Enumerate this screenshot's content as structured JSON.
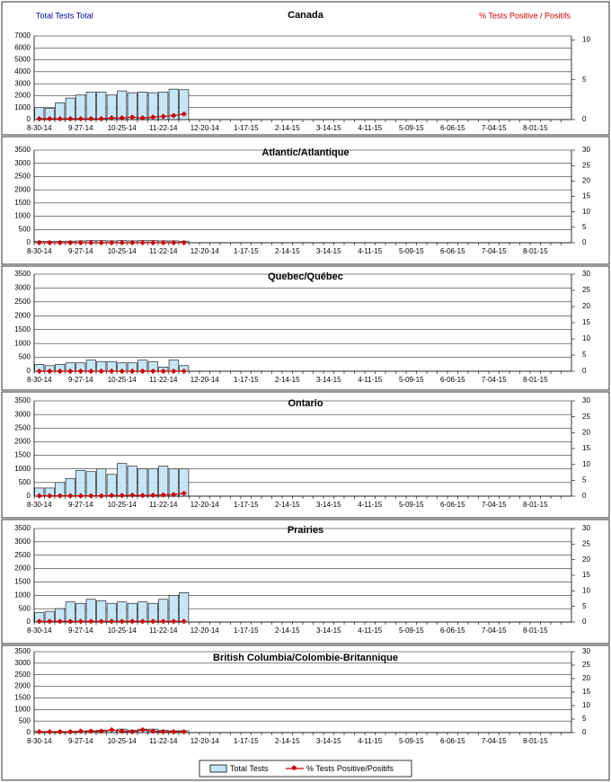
{
  "chart_data": [
    {
      "type": "bar-line",
      "title": "Canada",
      "y_label": "Total Tests Total",
      "y2_label": "% Tests Positive / Positifs",
      "categories": [
        "8-30-14",
        null,
        null,
        null,
        "9-27-14",
        null,
        null,
        null,
        "10-25-14",
        null,
        null,
        null,
        "11-22-14",
        null,
        null,
        null,
        "12-20-14",
        null,
        null,
        null,
        "1-17-15",
        null,
        null,
        null,
        "2-14-15",
        null,
        null,
        null,
        "3-14-15",
        null,
        null,
        null,
        "4-11-15",
        null,
        null,
        null,
        "5-09-15",
        null,
        null,
        null,
        "6-06-15",
        null,
        null,
        null,
        "7-04-15",
        null,
        null,
        null,
        "8-01-15",
        null,
        null,
        null
      ],
      "series": [
        {
          "name": "Total Tests",
          "color": "#c6e6f7",
          "values": [
            1000,
            950,
            1400,
            1800,
            2050,
            2300,
            2300,
            2050,
            2400,
            2250,
            2300,
            2250,
            2300,
            2550,
            2500,
            null,
            null,
            null,
            null,
            null,
            null,
            null,
            null,
            null,
            null,
            null,
            null,
            null,
            null,
            null,
            null,
            null,
            null,
            null,
            null,
            null,
            null,
            null,
            null,
            null,
            null,
            null,
            null,
            null,
            null,
            null,
            null,
            null,
            null,
            null,
            null,
            null
          ]
        },
        {
          "name": "% Tests Positive/Positifs",
          "color": "#cc0000",
          "axis": "y2",
          "values": [
            0.1,
            0.1,
            0.1,
            0.1,
            0.1,
            0.1,
            0.1,
            0.2,
            0.2,
            0.3,
            0.2,
            0.3,
            0.4,
            0.5,
            0.7,
            null,
            null,
            null,
            null,
            null,
            null,
            null,
            null,
            null,
            null,
            null,
            null,
            null,
            null,
            null,
            null,
            null,
            null,
            null,
            null,
            null,
            null,
            null,
            null,
            null,
            null,
            null,
            null,
            null,
            null,
            null,
            null,
            null,
            null,
            null,
            null,
            null
          ]
        }
      ],
      "ylim": [
        0,
        7000
      ],
      "yticks": [
        0,
        1000,
        2000,
        3000,
        4000,
        5000,
        6000,
        7000
      ],
      "y2lim": [
        0,
        10.5
      ],
      "y2ticks": [
        0,
        5,
        10
      ],
      "grid": true
    },
    {
      "type": "bar-line",
      "title": "Atlantic/Atlantique",
      "categories": [
        "8-30-14",
        null,
        null,
        null,
        "9-27-14",
        null,
        null,
        null,
        "10-25-14",
        null,
        null,
        null,
        "11-22-14",
        null,
        null,
        null,
        "12-20-14",
        null,
        null,
        null,
        "1-17-15",
        null,
        null,
        null,
        "2-14-15",
        null,
        null,
        null,
        "3-14-15",
        null,
        null,
        null,
        "4-11-15",
        null,
        null,
        null,
        "5-09-15",
        null,
        null,
        null,
        "6-06-15",
        null,
        null,
        null,
        "7-04-15",
        null,
        null,
        null,
        "8-01-15",
        null,
        null,
        null
      ],
      "series": [
        {
          "color": "#c6e6f7",
          "values": [
            60,
            50,
            50,
            60,
            70,
            80,
            80,
            70,
            80,
            70,
            80,
            80,
            70,
            70,
            60,
            null,
            null,
            null,
            null,
            null,
            null,
            null,
            null,
            null,
            null,
            null,
            null,
            null,
            null,
            null,
            null,
            null,
            null,
            null,
            null,
            null,
            null,
            null,
            null,
            null,
            null,
            null,
            null,
            null,
            null,
            null,
            null,
            null,
            null,
            null,
            null,
            null
          ]
        },
        {
          "color": "#cc0000",
          "axis": "y2",
          "values": [
            0,
            0,
            0,
            0,
            0,
            0,
            0,
            0,
            0,
            0,
            0,
            0,
            0,
            0,
            0,
            null,
            null,
            null,
            null,
            null,
            null,
            null,
            null,
            null,
            null,
            null,
            null,
            null,
            null,
            null,
            null,
            null,
            null,
            null,
            null,
            null,
            null,
            null,
            null,
            null,
            null,
            null,
            null,
            null,
            null,
            null,
            null,
            null,
            null,
            null,
            null,
            null
          ]
        }
      ],
      "ylim": [
        0,
        3500
      ],
      "yticks": [
        0,
        500,
        1000,
        1500,
        2000,
        2500,
        3000,
        3500
      ],
      "y2lim": [
        0,
        30
      ],
      "y2ticks": [
        0,
        5,
        10,
        15,
        20,
        25,
        30
      ],
      "grid": true
    },
    {
      "type": "bar-line",
      "title": "Quebec/Québec",
      "categories": [
        "8-30-14",
        null,
        null,
        null,
        "9-27-14",
        null,
        null,
        null,
        "10-25-14",
        null,
        null,
        null,
        "11-22-14",
        null,
        null,
        null,
        "12-20-14",
        null,
        null,
        null,
        "1-17-15",
        null,
        null,
        null,
        "2-14-15",
        null,
        null,
        null,
        "3-14-15",
        null,
        null,
        null,
        "4-11-15",
        null,
        null,
        null,
        "5-09-15",
        null,
        null,
        null,
        "6-06-15",
        null,
        null,
        null,
        "7-04-15",
        null,
        null,
        null,
        "8-01-15",
        null,
        null,
        null
      ],
      "series": [
        {
          "color": "#c6e6f7",
          "values": [
            250,
            200,
            250,
            300,
            300,
            400,
            350,
            350,
            300,
            300,
            400,
            350,
            150,
            400,
            200,
            null,
            null,
            null,
            null,
            null,
            null,
            null,
            null,
            null,
            null,
            null,
            null,
            null,
            null,
            null,
            null,
            null,
            null,
            null,
            null,
            null,
            null,
            null,
            null,
            null,
            null,
            null,
            null,
            null,
            null,
            null,
            null,
            null,
            null,
            null,
            null,
            null
          ]
        },
        {
          "color": "#cc0000",
          "axis": "y2",
          "values": [
            0,
            0,
            0,
            0,
            0,
            0,
            0,
            0,
            0,
            0,
            0,
            0,
            0,
            0,
            0,
            null,
            null,
            null,
            null,
            null,
            null,
            null,
            null,
            null,
            null,
            null,
            null,
            null,
            null,
            null,
            null,
            null,
            null,
            null,
            null,
            null,
            null,
            null,
            null,
            null,
            null,
            null,
            null,
            null,
            null,
            null,
            null,
            null,
            null,
            null,
            null,
            null
          ]
        }
      ],
      "ylim": [
        0,
        3500
      ],
      "yticks": [
        0,
        500,
        1000,
        1500,
        2000,
        2500,
        3000,
        3500
      ],
      "y2lim": [
        0,
        30
      ],
      "y2ticks": [
        0,
        5,
        10,
        15,
        20,
        25,
        30
      ],
      "grid": true
    },
    {
      "type": "bar-line",
      "title": "Ontario",
      "categories": [
        "8-30-14",
        null,
        null,
        null,
        "9-27-14",
        null,
        null,
        null,
        "10-25-14",
        null,
        null,
        null,
        "11-22-14",
        null,
        null,
        null,
        "12-20-14",
        null,
        null,
        null,
        "1-17-15",
        null,
        null,
        null,
        "2-14-15",
        null,
        null,
        null,
        "3-14-15",
        null,
        null,
        null,
        "4-11-15",
        null,
        null,
        null,
        "5-09-15",
        null,
        null,
        null,
        "6-06-15",
        null,
        null,
        null,
        "7-04-15",
        null,
        null,
        null,
        "8-01-15",
        null,
        null,
        null
      ],
      "series": [
        {
          "color": "#c6e6f7",
          "values": [
            300,
            300,
            500,
            650,
            950,
            900,
            1000,
            800,
            1200,
            1100,
            1000,
            1000,
            1100,
            1000,
            1000,
            null,
            null,
            null,
            null,
            null,
            null,
            null,
            null,
            null,
            null,
            null,
            null,
            null,
            null,
            null,
            null,
            null,
            null,
            null,
            null,
            null,
            null,
            null,
            null,
            null,
            null,
            null,
            null,
            null,
            null,
            null,
            null,
            null,
            null,
            null,
            null,
            null
          ]
        },
        {
          "color": "#cc0000",
          "axis": "y2",
          "values": [
            0.1,
            0.1,
            0.1,
            0.1,
            0.1,
            0.1,
            0.1,
            0.2,
            0.2,
            0.3,
            0.2,
            0.3,
            0.4,
            0.5,
            0.9,
            null,
            null,
            null,
            null,
            null,
            null,
            null,
            null,
            null,
            null,
            null,
            null,
            null,
            null,
            null,
            null,
            null,
            null,
            null,
            null,
            null,
            null,
            null,
            null,
            null,
            null,
            null,
            null,
            null,
            null,
            null,
            null,
            null,
            null,
            null,
            null,
            null
          ]
        }
      ],
      "ylim": [
        0,
        3500
      ],
      "yticks": [
        0,
        500,
        1000,
        1500,
        2000,
        2500,
        3000,
        3500
      ],
      "y2lim": [
        0,
        30
      ],
      "y2ticks": [
        0,
        5,
        10,
        15,
        20,
        25,
        30
      ],
      "grid": true
    },
    {
      "type": "bar-line",
      "title": "Prairies",
      "categories": [
        "8-30-14",
        null,
        null,
        null,
        "9-27-14",
        null,
        null,
        null,
        "10-25-14",
        null,
        null,
        null,
        "11-22-14",
        null,
        null,
        null,
        "12-20-14",
        null,
        null,
        null,
        "1-17-15",
        null,
        null,
        null,
        "2-14-15",
        null,
        null,
        null,
        "3-14-15",
        null,
        null,
        null,
        "4-11-15",
        null,
        null,
        null,
        "5-09-15",
        null,
        null,
        null,
        "6-06-15",
        null,
        null,
        null,
        "7-04-15",
        null,
        null,
        null,
        "8-01-15",
        null,
        null,
        null
      ],
      "series": [
        {
          "color": "#c6e6f7",
          "values": [
            350,
            400,
            500,
            750,
            700,
            850,
            800,
            700,
            750,
            700,
            750,
            700,
            850,
            1000,
            1100,
            null,
            null,
            null,
            null,
            null,
            null,
            null,
            null,
            null,
            null,
            null,
            null,
            null,
            null,
            null,
            null,
            null,
            null,
            null,
            null,
            null,
            null,
            null,
            null,
            null,
            null,
            null,
            null,
            null,
            null,
            null,
            null,
            null,
            null,
            null,
            null,
            null
          ]
        },
        {
          "color": "#cc0000",
          "axis": "y2",
          "values": [
            0.2,
            0.2,
            0.2,
            0.2,
            0.2,
            0.2,
            0.2,
            0.2,
            0.2,
            0.2,
            0.2,
            0.2,
            0.2,
            0.2,
            0.2,
            null,
            null,
            null,
            null,
            null,
            null,
            null,
            null,
            null,
            null,
            null,
            null,
            null,
            null,
            null,
            null,
            null,
            null,
            null,
            null,
            null,
            null,
            null,
            null,
            null,
            null,
            null,
            null,
            null,
            null,
            null,
            null,
            null,
            null,
            null,
            null,
            null
          ]
        }
      ],
      "ylim": [
        0,
        3500
      ],
      "yticks": [
        0,
        500,
        1000,
        1500,
        2000,
        2500,
        3000,
        3500
      ],
      "y2lim": [
        0,
        30
      ],
      "y2ticks": [
        0,
        5,
        10,
        15,
        20,
        25,
        30
      ],
      "grid": true
    },
    {
      "type": "bar-line",
      "title": "British Columbia/Colombie-Britannique",
      "categories": [
        "8-30-14",
        null,
        null,
        null,
        "9-27-14",
        null,
        null,
        null,
        "10-25-14",
        null,
        null,
        null,
        "11-22-14",
        null,
        null,
        null,
        "12-20-14",
        null,
        null,
        null,
        "1-17-15",
        null,
        null,
        null,
        "2-14-15",
        null,
        null,
        null,
        "3-14-15",
        null,
        null,
        null,
        "4-11-15",
        null,
        null,
        null,
        "5-09-15",
        null,
        null,
        null,
        "6-06-15",
        null,
        null,
        null,
        "7-04-15",
        null,
        null,
        null,
        "8-01-15",
        null,
        null,
        null
      ],
      "series": [
        {
          "color": "#c6e6f7",
          "values": [
            50,
            50,
            50,
            50,
            60,
            80,
            100,
            100,
            150,
            100,
            150,
            150,
            100,
            80,
            80,
            null,
            null,
            null,
            null,
            null,
            null,
            null,
            null,
            null,
            null,
            null,
            null,
            null,
            null,
            null,
            null,
            null,
            null,
            null,
            null,
            null,
            null,
            null,
            null,
            null,
            null,
            null,
            null,
            null,
            null,
            null,
            null,
            null,
            null,
            null,
            null,
            null
          ]
        },
        {
          "color": "#cc0000",
          "axis": "y2",
          "values": [
            0.3,
            0.3,
            0.3,
            0.3,
            0.5,
            0.5,
            0.5,
            1,
            0.5,
            0.3,
            1,
            0.5,
            0.3,
            0.3,
            0.3,
            null,
            null,
            null,
            null,
            null,
            null,
            null,
            null,
            null,
            null,
            null,
            null,
            null,
            null,
            null,
            null,
            null,
            null,
            null,
            null,
            null,
            null,
            null,
            null,
            null,
            null,
            null,
            null,
            null,
            null,
            null,
            null,
            null,
            null,
            null,
            null,
            null
          ]
        }
      ],
      "ylim": [
        0,
        3500
      ],
      "yticks": [
        0,
        500,
        1000,
        1500,
        2000,
        2500,
        3000,
        3500
      ],
      "y2lim": [
        0,
        30
      ],
      "y2ticks": [
        0,
        5,
        10,
        15,
        20,
        25,
        30
      ],
      "grid": true
    }
  ]
}
